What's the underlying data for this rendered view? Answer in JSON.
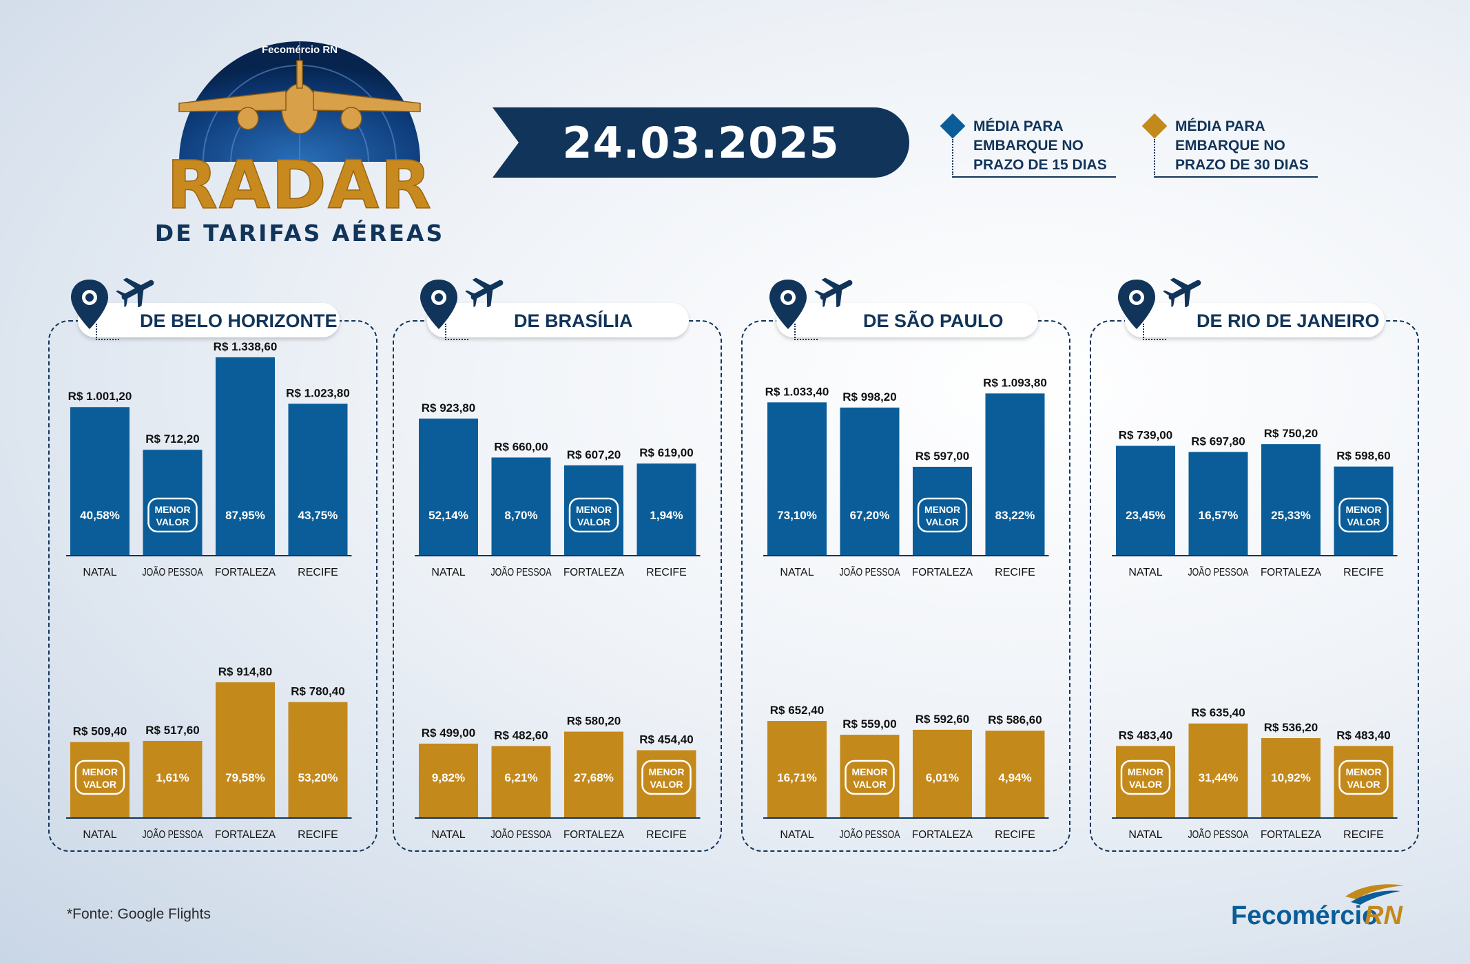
{
  "header": {
    "logo_brand": "Fecomércio RN",
    "logo_title": "RADAR",
    "logo_subtitle": "DE TARIFAS AÉREAS",
    "date": "24.03.2025"
  },
  "legend": [
    {
      "label_lines": [
        "MÉDIA PARA",
        "EMBARQUE NO",
        "PRAZO DE 15 DIAS"
      ],
      "color": "#0a5d98"
    },
    {
      "label_lines": [
        "MÉDIA PARA",
        "EMBARQUE NO",
        "PRAZO DE 30 DIAS"
      ],
      "color": "#c4891b"
    }
  ],
  "badge": {
    "line1": "MENOR",
    "line2": "VALOR"
  },
  "chart_data": [
    {
      "type": "bar",
      "title": "DE BELO HORIZONTE",
      "categories": [
        "NATAL",
        "JOÃO PESSOA",
        "FORTALEZA",
        "RECIFE"
      ],
      "series": [
        {
          "values": [
            1001.2,
            712.2,
            1338.6,
            1023.8
          ],
          "value_labels": [
            "R$ 1.001,20",
            "R$ 712,20",
            "R$ 1.338,60",
            "R$ 1.023,80"
          ],
          "inner_labels": [
            "40,58%",
            "MENOR VALOR",
            "87,95%",
            "43,75%"
          ],
          "color": "#0a5d98"
        },
        {
          "values": [
            509.4,
            517.6,
            914.8,
            780.4
          ],
          "value_labels": [
            "R$ 509,40",
            "R$ 517,60",
            "R$ 914,80",
            "R$ 780,40"
          ],
          "inner_labels": [
            "MENOR VALOR",
            "1,61%",
            "79,58%",
            "53,20%"
          ],
          "color": "#c4891b"
        }
      ]
    },
    {
      "type": "bar",
      "title": "DE BRASÍLIA",
      "categories": [
        "NATAL",
        "JOÃO PESSOA",
        "FORTALEZA",
        "RECIFE"
      ],
      "series": [
        {
          "values": [
            923.8,
            660.0,
            607.2,
            619.0
          ],
          "value_labels": [
            "R$ 923,80",
            "R$ 660,00",
            "R$ 607,20",
            "R$ 619,00"
          ],
          "inner_labels": [
            "52,14%",
            "8,70%",
            "MENOR VALOR",
            "1,94%"
          ],
          "color": "#0a5d98"
        },
        {
          "values": [
            499.0,
            482.6,
            580.2,
            454.4
          ],
          "value_labels": [
            "R$ 499,00",
            "R$ 482,60",
            "R$ 580,20",
            "R$ 454,40"
          ],
          "inner_labels": [
            "9,82%",
            "6,21%",
            "27,68%",
            "MENOR VALOR"
          ],
          "color": "#c4891b"
        }
      ]
    },
    {
      "type": "bar",
      "title": "DE SÃO PAULO",
      "categories": [
        "NATAL",
        "JOÃO PESSOA",
        "FORTALEZA",
        "RECIFE"
      ],
      "series": [
        {
          "values": [
            1033.4,
            998.2,
            597.0,
            1093.8
          ],
          "value_labels": [
            "R$ 1.033,40",
            "R$ 998,20",
            "R$ 597,00",
            "R$ 1.093,80"
          ],
          "inner_labels": [
            "73,10%",
            "67,20%",
            "MENOR VALOR",
            "83,22%"
          ],
          "color": "#0a5d98"
        },
        {
          "values": [
            652.4,
            559.0,
            592.6,
            586.6
          ],
          "value_labels": [
            "R$ 652,40",
            "R$ 559,00",
            "R$ 592,60",
            "R$ 586,60"
          ],
          "inner_labels": [
            "16,71%",
            "MENOR VALOR",
            "6,01%",
            "4,94%"
          ],
          "color": "#c4891b"
        }
      ]
    },
    {
      "type": "bar",
      "title": "DE RIO DE JANEIRO",
      "categories": [
        "NATAL",
        "JOÃO PESSOA",
        "FORTALEZA",
        "RECIFE"
      ],
      "series": [
        {
          "values": [
            739.0,
            697.8,
            750.2,
            598.6
          ],
          "value_labels": [
            "R$ 739,00",
            "R$ 697,80",
            "R$ 750,20",
            "R$ 598,60"
          ],
          "inner_labels": [
            "23,45%",
            "16,57%",
            "25,33%",
            "MENOR VALOR"
          ],
          "color": "#0a5d98"
        },
        {
          "values": [
            483.4,
            635.4,
            536.2,
            483.4
          ],
          "value_labels": [
            "R$ 483,40",
            "R$ 635,40",
            "R$ 536,20",
            "R$ 483,40"
          ],
          "inner_labels": [
            "MENOR VALOR",
            "31,44%",
            "10,92%",
            "MENOR VALOR"
          ],
          "color": "#c4891b"
        }
      ]
    }
  ],
  "footer": {
    "source": "*Fonte: Google Flights",
    "brand": "Fecomércio",
    "brand_suffix": "RN"
  }
}
